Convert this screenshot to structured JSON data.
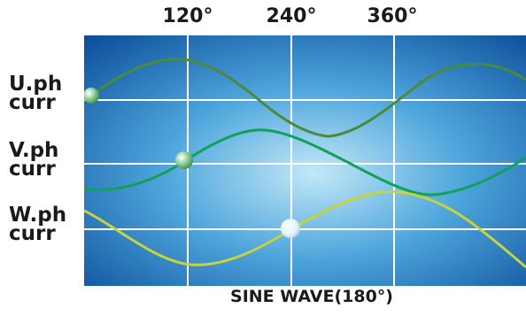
{
  "top_axis": {
    "labels": [
      "120°",
      "240°",
      "360°"
    ]
  },
  "rows": [
    {
      "line1": "U.ph",
      "line2": "curr",
      "color": "#4a8a3a"
    },
    {
      "line1": "V.ph",
      "line2": "curr",
      "color": "#12a05a"
    },
    {
      "line1": "W.ph",
      "line2": "curr",
      "color": "#c6d33a"
    }
  ],
  "bottom_label": "SINE WAVE(180°)",
  "colors": {
    "background_center": "#bfe6f6",
    "background_edge": "#0b4d9a",
    "grid": "#ffffff"
  }
}
